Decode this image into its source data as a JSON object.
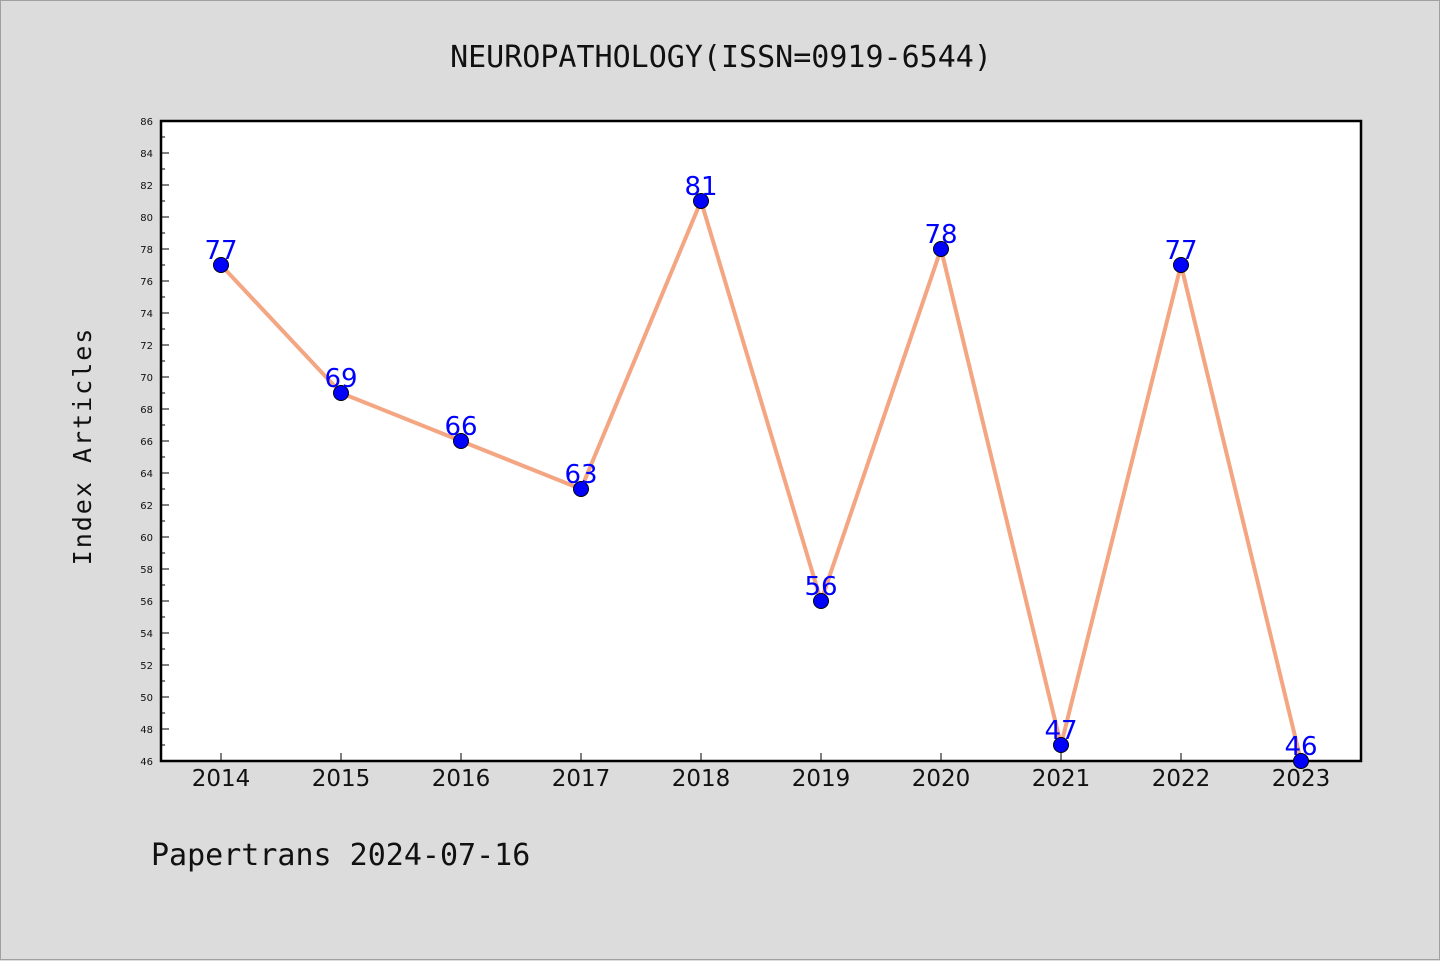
{
  "chart_data": {
    "type": "line",
    "title": "NEUROPATHOLOGY(ISSN=0919-6544)",
    "ylabel": "Index Articles",
    "xlabel": "",
    "footer": "Papertrans 2024-07-16",
    "x": [
      "2014",
      "2015",
      "2016",
      "2017",
      "2018",
      "2019",
      "2020",
      "2021",
      "2022",
      "2023"
    ],
    "series": [
      {
        "values": [
          77,
          69,
          66,
          63,
          81,
          56,
          78,
          47,
          77,
          46
        ]
      }
    ],
    "ylim": [
      46,
      86
    ],
    "ytick_step": 2,
    "grid": false,
    "legend": "none",
    "colors": {
      "line": "#f4a582",
      "marker": "#0000ff",
      "data_label": "#0000ff",
      "background": "#dcdcdc",
      "plot_background": "#ffffff"
    }
  }
}
